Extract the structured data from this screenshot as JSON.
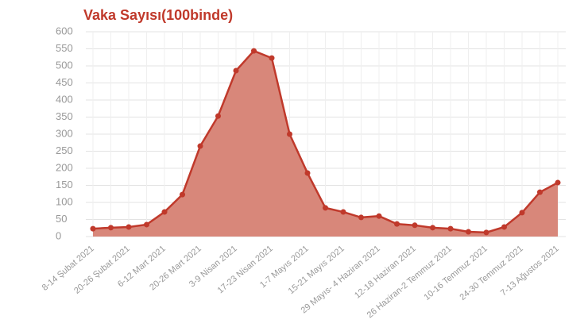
{
  "chart_data": {
    "type": "area",
    "title": "Vaka Sayısı(100binde)",
    "categories": [
      "8-14 Şubat 2021",
      null,
      "20-26 Şubat 2021",
      null,
      "6-12 Mart 2021",
      null,
      "20-26 Mart 2021",
      null,
      "3-9 Nisan 2021",
      null,
      "17-23 Nisan 2021",
      null,
      "1-7 Mayıs 2021",
      null,
      "15-21 Mayıs 2021",
      null,
      "29 Mayıs- 4 Haziran 2021",
      null,
      "12-18 Haziran 2021",
      null,
      "26 Haziran-2 Temmuz 2021",
      null,
      "10-16 Temmuz 2021",
      null,
      "24-30 Temmuz 2021",
      null,
      "7-13 Ağustos 2021"
    ],
    "values": [
      23,
      26,
      28,
      35,
      72,
      123,
      265,
      353,
      486,
      544,
      523,
      300,
      186,
      84,
      72,
      56,
      60,
      37,
      33,
      26,
      23,
      14,
      12,
      28,
      70,
      130,
      158
    ],
    "color": "#c0392b",
    "fill": "#d8877a",
    "ylim": [
      0,
      600
    ],
    "yticks": [
      0,
      50,
      100,
      150,
      200,
      250,
      300,
      350,
      400,
      450,
      500,
      550,
      600
    ],
    "grid": true
  }
}
